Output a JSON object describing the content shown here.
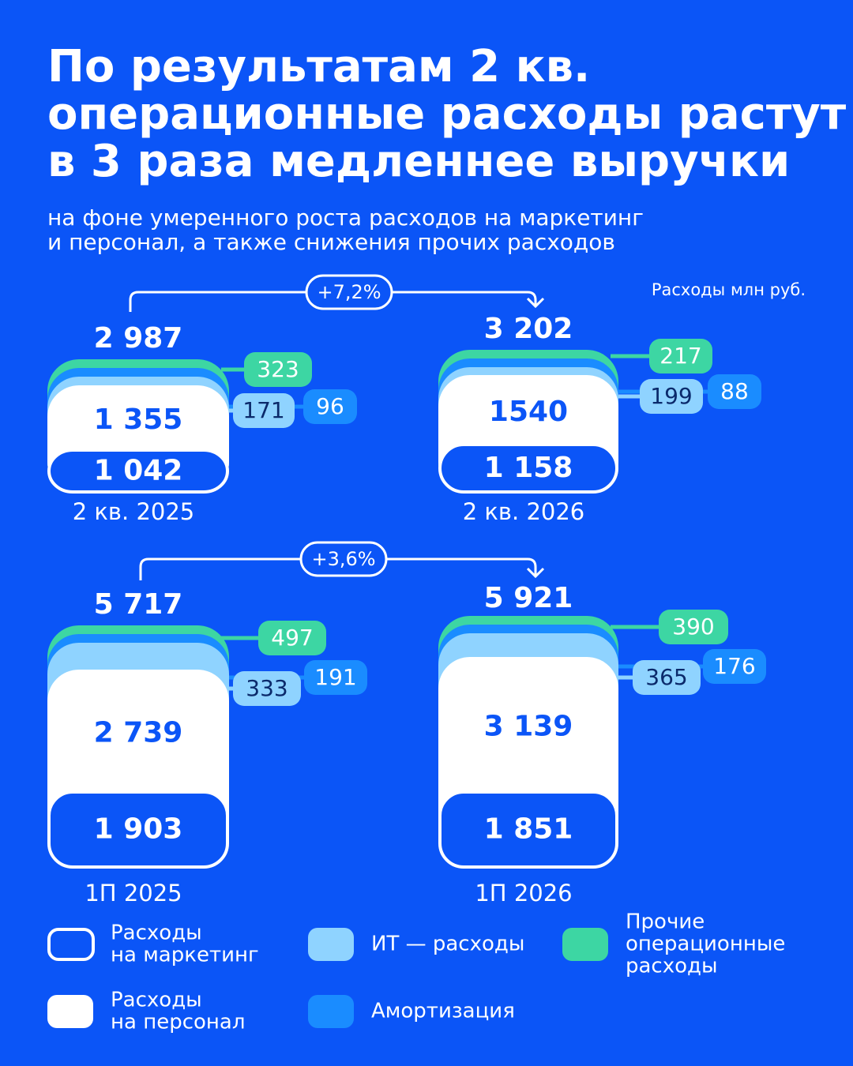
{
  "title": [
    "По результатам 2 кв.",
    "операционные расходы растут",
    "в 3 раза медленнее выручки"
  ],
  "subtitle": [
    "на фоне умеренного роста расходов на маркетинг",
    "и персонал, а также снижения прочих расходов"
  ],
  "unit_note": "Расходы млн руб.",
  "comparisons": [
    {
      "change": "+7,2%",
      "groups": [
        {
          "total": "2 987",
          "personnel": "1 355",
          "marketing": "1 042",
          "other": "323",
          "it": "171",
          "amortization": "96",
          "label": "2 кв. 2025"
        },
        {
          "total": "3 202",
          "personnel": "1540",
          "marketing": "1 158",
          "other": "217",
          "it": "199",
          "amortization": "88",
          "label": "2 кв. 2026"
        }
      ]
    },
    {
      "change": "+3,6%",
      "groups": [
        {
          "total": "5 717",
          "personnel": "2 739",
          "marketing": "1 903",
          "other": "497",
          "it": "333",
          "amortization": "191",
          "label": "1П 2025"
        },
        {
          "total": "5 921",
          "personnel": "3 139",
          "marketing": "1 851",
          "other": "390",
          "it": "365",
          "amortization": "176",
          "label": "1П 2026"
        }
      ]
    }
  ],
  "legend": [
    [
      "Расходы",
      "на маркетинг"
    ],
    [
      "Расходы",
      "на персонал"
    ],
    [
      "ИТ — расходы"
    ],
    [
      "Амортизация"
    ],
    [
      "Прочие",
      "операционные",
      "расходы"
    ]
  ]
}
